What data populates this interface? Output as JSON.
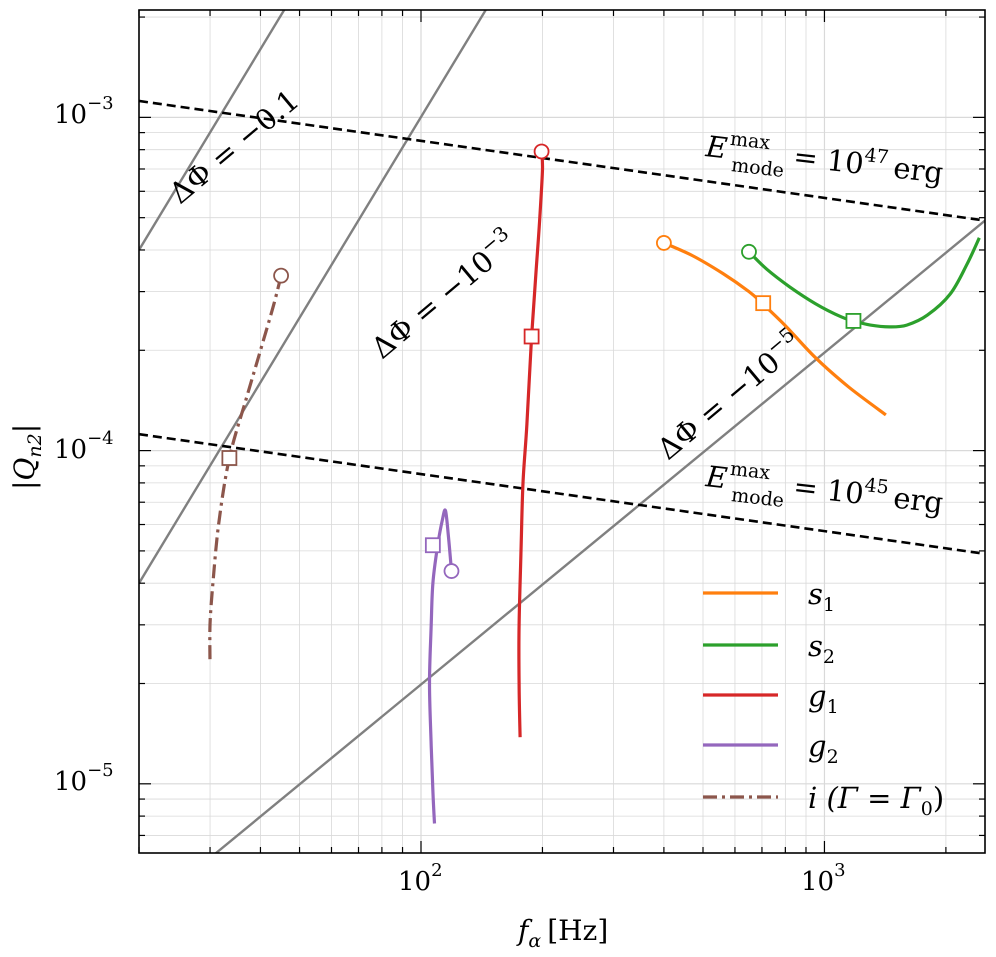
{
  "chart_data": {
    "type": "line",
    "xscale": "log",
    "yscale": "log",
    "xlim": [
      20,
      2500
    ],
    "ylim": [
      6.2e-06,
      0.0021
    ],
    "xlabel": "f_α [Hz]",
    "xlabel_main": "f",
    "xlabel_sub": "α",
    "xlabel_unit": "[Hz]",
    "ylabel": "|Q_n2|",
    "ylabel_main": "|Q",
    "ylabel_sub": "n2",
    "ylabel_close": "|",
    "grid": true,
    "xticks": [
      {
        "value": 100,
        "base": "10",
        "exp": "2"
      },
      {
        "value": 1000,
        "base": "10",
        "exp": "3"
      }
    ],
    "yticks": [
      {
        "value": 1e-05,
        "base": "10",
        "exp": "−5"
      },
      {
        "value": 0.0001,
        "base": "10",
        "exp": "−4"
      },
      {
        "value": 0.001,
        "base": "10",
        "exp": "−3"
      }
    ],
    "reference_lines": [
      {
        "kind": "dephasing",
        "label_main": "ΔΦ = −",
        "label_value": "0.1",
        "label_base": "",
        "label_exp": "",
        "x": [
          20,
          2500
        ],
        "y": [
          0.0004,
          6.3
        ]
      },
      {
        "kind": "dephasing",
        "label_main": "ΔΦ = −",
        "label_value": "",
        "label_base": "10",
        "label_exp": "−3",
        "x": [
          20,
          2500
        ],
        "y": [
          4e-05,
          0.63
        ]
      },
      {
        "kind": "dephasing",
        "label_main": "ΔΦ = −",
        "label_value": "",
        "label_base": "10",
        "label_exp": "−5",
        "x": [
          20,
          2500
        ],
        "y": [
          4e-06,
          0.00049
        ]
      },
      {
        "kind": "energy",
        "label_main": "E",
        "label_sup": "max",
        "label_sub": "mode",
        "label_eq": "= 10",
        "label_exp": "47",
        "label_unit": "erg",
        "x": [
          20,
          2500
        ],
        "y": [
          0.00112,
          0.00049
        ]
      },
      {
        "kind": "energy",
        "label_main": "E",
        "label_sup": "max",
        "label_sub": "mode",
        "label_eq": "= 10",
        "label_exp": "45",
        "label_unit": "erg",
        "x": [
          20,
          2500
        ],
        "y": [
          0.000112,
          4.9e-05
        ]
      }
    ],
    "series": [
      {
        "name": "s",
        "sub": "1",
        "color": "#ff7f0e",
        "dash": "solid",
        "x": [
          400,
          470,
          560,
          650,
          700,
          800,
          950,
          1150,
          1420
        ],
        "y": [
          0.00042,
          0.000385,
          0.00034,
          0.0003,
          0.000277,
          0.000237,
          0.00019,
          0.000155,
          0.000128
        ],
        "start": [
          400,
          0.00042
        ],
        "marker": [
          705,
          0.000277
        ]
      },
      {
        "name": "s",
        "sub": "2",
        "color": "#2ca02c",
        "dash": "solid",
        "x": [
          650,
          720,
          820,
          950,
          1100,
          1180,
          1300,
          1450,
          1600,
          1800,
          2050,
          2250,
          2420
        ],
        "y": [
          0.000395,
          0.00035,
          0.00031,
          0.000276,
          0.000252,
          0.000245,
          0.000238,
          0.000235,
          0.000238,
          0.000255,
          0.000295,
          0.00036,
          0.000435
        ],
        "start": [
          650,
          0.000395
        ],
        "marker": [
          1180,
          0.000245
        ]
      },
      {
        "name": "g",
        "sub": "1",
        "color": "#d62728",
        "dash": "solid",
        "x": [
          199,
          200,
          197,
          193,
          188,
          183,
          179,
          177,
          175,
          175,
          176
        ],
        "y": [
          0.00079,
          0.0007,
          0.0005,
          0.00035,
          0.00022,
          0.00012,
          8e-05,
          5e-05,
          3e-05,
          2e-05,
          1.38e-05
        ],
        "start": [
          199,
          0.00079
        ],
        "marker": [
          188,
          0.00022
        ]
      },
      {
        "name": "g",
        "sub": "2",
        "color": "#9467bd",
        "dash": "solid",
        "x": [
          119,
          117,
          115,
          113,
          110,
          107,
          106,
          105,
          106,
          107,
          108
        ],
        "y": [
          4.35e-05,
          5.5e-05,
          6.6e-05,
          6.2e-05,
          5.2e-05,
          4e-05,
          3e-05,
          2e-05,
          1.3e-05,
          9.5e-06,
          7.6e-06
        ],
        "start": [
          119,
          4.35e-05
        ],
        "marker": [
          107,
          5.2e-05
        ]
      },
      {
        "name": "i (Γ = Γ",
        "sub": "0",
        "suffix": ")",
        "color": "#8c564b",
        "dash": "dashdot",
        "x": [
          45,
          43,
          40,
          37,
          33.5,
          31.5,
          30.5,
          30,
          30
        ],
        "y": [
          0.000335,
          0.00027,
          0.0002,
          0.000145,
          9.5e-05,
          6e-05,
          4e-05,
          3e-05,
          2.3e-05
        ],
        "start": [
          45,
          0.000335
        ],
        "marker": [
          33.5,
          9.5e-05
        ]
      }
    ]
  }
}
